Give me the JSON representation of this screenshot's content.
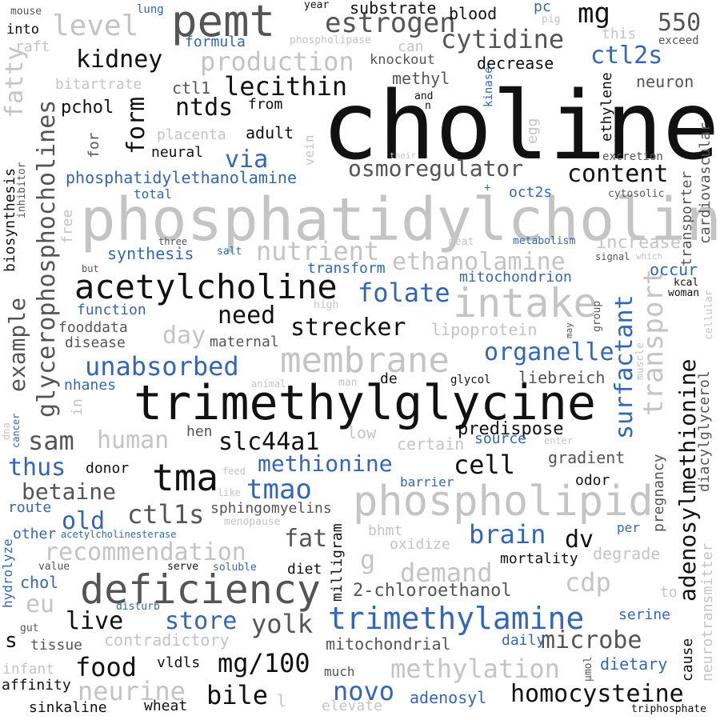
{
  "colors": {
    "background": "#ffffff",
    "black": "#111111",
    "dark_gray": "#555555",
    "mid_gray": "#999999",
    "light_gray": "#c4c4c4",
    "blue": "#3366bb"
  },
  "words": {
    "choline": "choline",
    "phosphatidylcholine": "phosphatidylcholine",
    "trimethylglycine": "trimethylglycine",
    "acetylcholine": "acetylcholine",
    "deficiency": "deficiency",
    "phospholipid": "phospholipid",
    "pemt": "pemt",
    "intake": "intake",
    "membrane": "membrane",
    "trimethylamine": "trimethylamine",
    "tma": "tma",
    "estrogen": "estrogen",
    "cytidine": "cytidine",
    "kidney": "kidney",
    "lecithin": "lecithin",
    "production": "production",
    "level": "level",
    "mg": "mg",
    "n550": "550",
    "ctl2s": "ctl2s",
    "ntds": "ntds",
    "osmoregulator": "osmoregulator",
    "content": "content",
    "nutrient": "nutrient",
    "ethanolamine": "ethanolamine",
    "folate": "folate",
    "organelle": "organelle",
    "surfactant": "surfactant",
    "transport": "transport",
    "adenosylmethionine": "adenosylmethionine",
    "strecker": "strecker",
    "need": "need",
    "day": "day",
    "unabsorbed": "unabsorbed",
    "sam": "sam",
    "human": "human",
    "slc44a1": "slc44a1",
    "thus": "thus",
    "betaine": "betaine",
    "methionine": "methionine",
    "cell": "cell",
    "tmao": "tmao",
    "old": "old",
    "ctl1s": "ctl1s",
    "brain": "brain",
    "dv": "dv",
    "recommendation": "recommendation",
    "fat": "fat",
    "g": "g",
    "demand": "demand",
    "cdp": "cdp",
    "live": "live",
    "store": "store",
    "yolk": "yolk",
    "microbe": "microbe",
    "food": "food",
    "mg100": "mg/100",
    "bile": "bile",
    "neurine": "neurine",
    "methylation": "methylation",
    "novo": "novo",
    "homocysteine": "homocysteine",
    "glycerophosphocholines": "glycerophosphocholines",
    "fatty": "fatty",
    "example": "example",
    "form": "form",
    "via": "via",
    "eu": "eu",
    "s": "s",
    "ethylene": "ethylene",
    "knockout": "knockout",
    "methyl": "methyl",
    "decrease": "decrease",
    "substrate": "substrate",
    "blood": "blood",
    "neuron": "neuron",
    "pchol": "pchol",
    "ctl1": "ctl1",
    "from": "from",
    "adult": "adult",
    "placenta": "placenta",
    "neural": "neural",
    "bitartrate": "bitartrate",
    "raft": "raft",
    "formula": "formula",
    "year": "year",
    "mouse": "mouse",
    "into": "into",
    "lung": "lung",
    "pc": "pc",
    "pig": "pig",
    "can": "can",
    "phospholipase": "phospholipase",
    "this": "this",
    "exceed": "exceed",
    "kinase": "kinase",
    "egg": "egg",
    "and": "and",
    "n_word": "n",
    "excretion": "excretion",
    "their": "their",
    "cardiovascular": "cardiovascular",
    "phosphatidylethanolamine": "phosphatidylethanolamine",
    "total": "total",
    "plus": "+",
    "oct2s": "oct2s",
    "cytosolic": "cytosolic",
    "biosynthesis": "biosynthesis",
    "inhibitor": "inhibitor",
    "for": "for",
    "vein": "vein",
    "free": "free",
    "three": "three",
    "salt": "salt",
    "synthesis": "synthesis",
    "meat": "meat",
    "metabolism": "metabolism",
    "increase": "increase",
    "signal": "signal",
    "which": "which",
    "transform": "transform",
    "mitochondrion": "mitochondrion",
    "occur": "occur",
    "kcal": "kcal",
    "woman": "woman",
    "but": "but",
    "function": "function",
    "high": "high",
    "group": "group",
    "cellular": "cellular",
    "fooddata": "fooddata",
    "disease": "disease",
    "maternal": "maternal",
    "lipoprotein": "lipoprotein",
    "may": "may",
    "muscle": "muscle",
    "diacylglycerol": "diacylglycerol",
    "transporter": "transporter",
    "nhanes": "nhanes",
    "in_word": "in",
    "animal": "animal",
    "man": "man",
    "de": "de",
    "glycol": "glycol",
    "liebreich": "liebreich",
    "predispose": "predispose",
    "dna": "dna",
    "cancer": "cancer",
    "hen": "hen",
    "low": "low",
    "certain": "certain",
    "source": "source",
    "enter": "enter",
    "gradient": "gradient",
    "pregnancy": "pregnancy",
    "donor": "donor",
    "feed": "feed",
    "barrier": "barrier",
    "odor": "odor",
    "route": "route",
    "like": "like",
    "sphingomyelins": "sphingomyelins",
    "menopause": "menopause",
    "other": "other",
    "acetylcholinesterase": "acetylcholinesterase",
    "bhmt": "bhmt",
    "oxidize": "oxidize",
    "per": "per",
    "degrade": "degrade",
    "mortality": "mortality",
    "hydrolyze": "hydrolyze",
    "value": "value",
    "serve": "serve",
    "soluble": "soluble",
    "diet": "diet",
    "milligram": "milligram",
    "chol": "chol",
    "chloroethanol": "2-chloroethanol",
    "to": "to",
    "neurotransmitter": "neurotransmitter",
    "disturb": "disturb",
    "serine": "serine",
    "gut": "gut",
    "tissue": "tissue",
    "contradictory": "contradictory",
    "mitochondrial": "mitochondrial",
    "daily": "daily",
    "cause": "cause",
    "infant": "infant",
    "much": "much",
    "umol": "µmol",
    "dietary": "dietary",
    "affinity": "affinity",
    "vldls": "vldls",
    "sinkaline": "sinkaline",
    "wheat": "wheat",
    "l_word": "l",
    "elevate": "elevate",
    "adenosyl": "adenosyl",
    "triphosphate": "triphosphate"
  }
}
